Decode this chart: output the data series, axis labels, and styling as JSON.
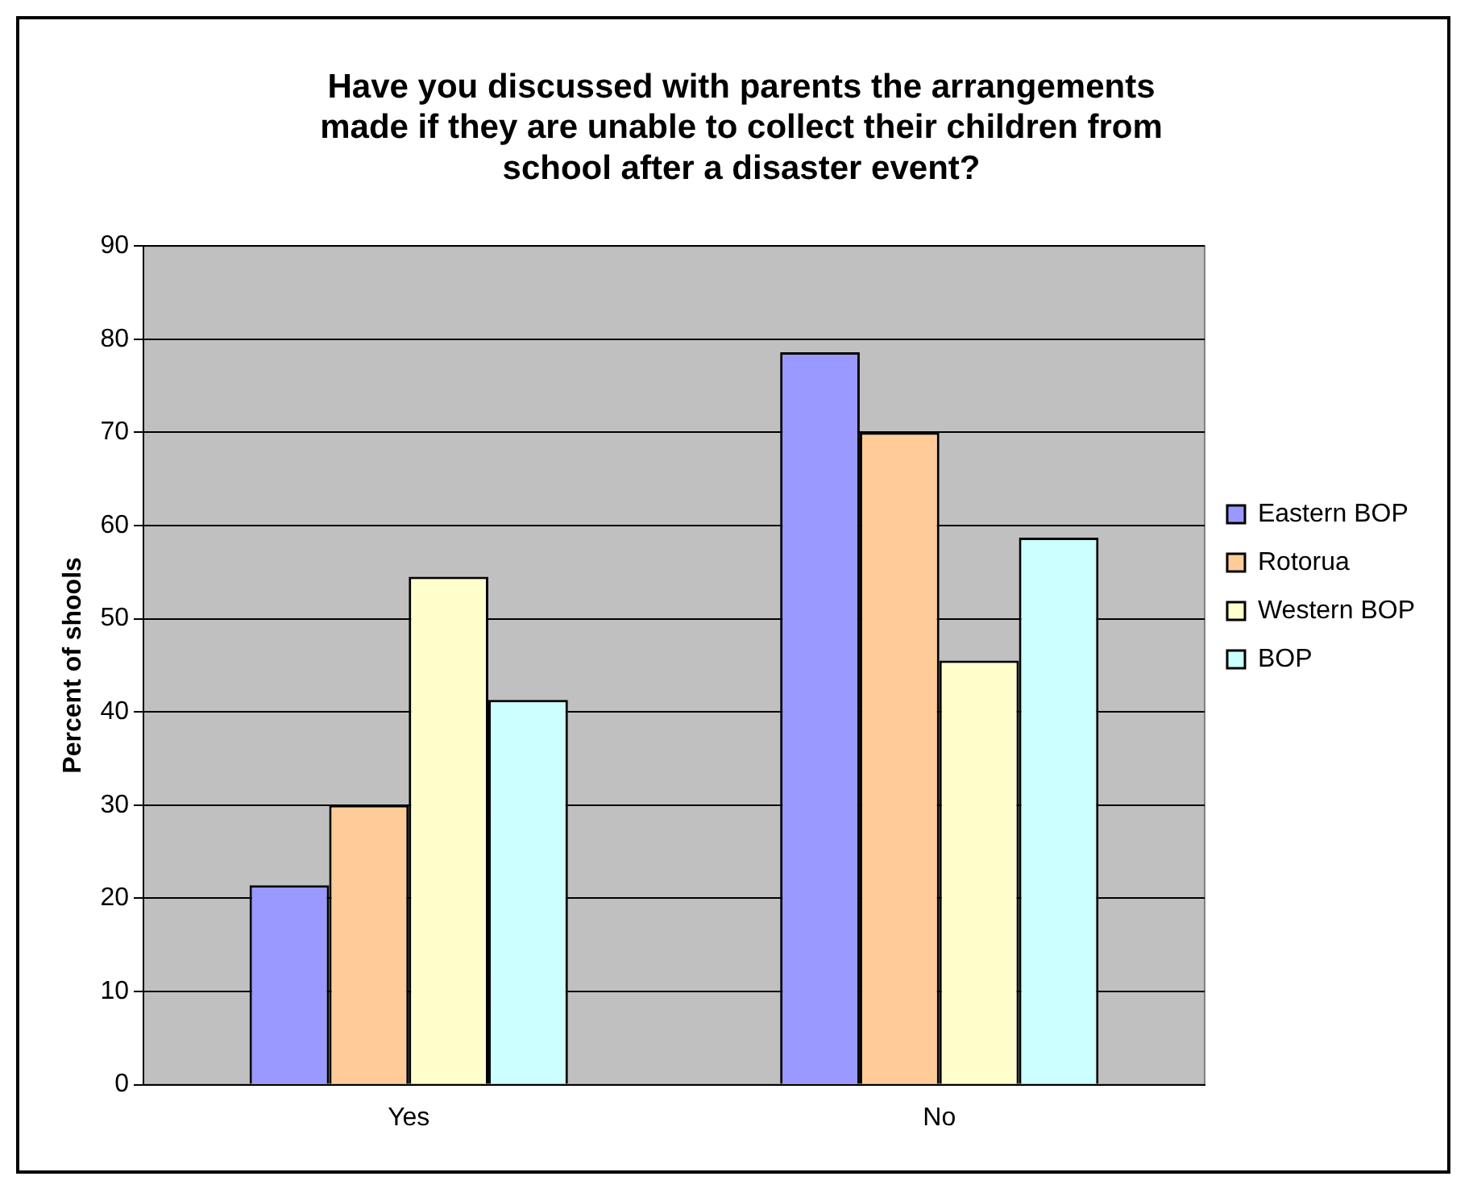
{
  "chart_data": {
    "type": "bar",
    "title": "Have you discussed with parents the arrangements made if they are unable to collect their children from school after a disaster event?",
    "ylabel": "Percent of shools",
    "categories": [
      "Yes",
      "No"
    ],
    "series": [
      {
        "name": "Eastern BOP",
        "color": "#9999ff",
        "values": [
          21.4,
          78.6
        ]
      },
      {
        "name": "Rotorua",
        "color": "#ffcc99",
        "values": [
          30,
          70
        ]
      },
      {
        "name": "Western BOP",
        "color": "#ffffcc",
        "values": [
          54.5,
          45.5
        ]
      },
      {
        "name": "BOP",
        "color": "#ccffff",
        "values": [
          41.3,
          58.7
        ]
      }
    ],
    "ylim": [
      0,
      90
    ],
    "yticks": [
      0,
      10,
      20,
      30,
      40,
      50,
      60,
      70,
      80,
      90
    ],
    "grid": "y",
    "legend": "right"
  }
}
